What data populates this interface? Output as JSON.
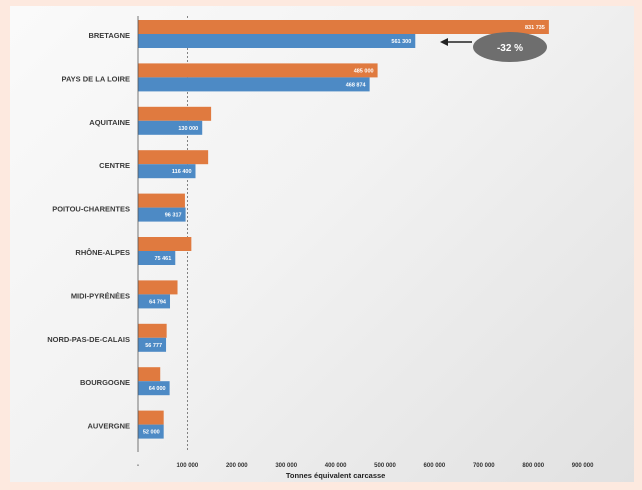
{
  "chart_data": {
    "type": "bar",
    "orientation": "horizontal",
    "title": "",
    "xlabel": "Tonnes équivalent carcasse",
    "ylabel": "",
    "xlim": [
      0,
      900000
    ],
    "x_ticks": [
      0,
      100000,
      200000,
      300000,
      400000,
      500000,
      600000,
      700000,
      800000,
      900000
    ],
    "x_tick_labels": [
      "-",
      "100 000",
      "200 000",
      "300 000",
      "400 000",
      "500 000",
      "600 000",
      "700 000",
      "800 000",
      "900 000"
    ],
    "categories": [
      "BRETAGNE",
      "PAYS DE LA LOIRE",
      "AQUITAINE",
      "CENTRE",
      "POITOU-CHARENTES",
      "RHÔNE-ALPES",
      "MIDI-PYRÉNÉES",
      "NORD-PAS-DE-CALAIS",
      "BOURGOGNE",
      "AUVERGNE"
    ],
    "series": [
      {
        "color": "#e07a3f",
        "values": [
          831735,
          485000,
          148000,
          142000,
          95000,
          108000,
          80000,
          58000,
          45000,
          52000
        ],
        "labels": [
          "831 735",
          "485 000",
          "",
          "",
          "",
          "",
          "",
          "",
          "",
          ""
        ]
      },
      {
        "color": "#4d8ac5",
        "values": [
          561300,
          468874,
          130000,
          116400,
          96317,
          75461,
          64794,
          56777,
          64000,
          52000
        ],
        "labels": [
          "561 300",
          "468 874",
          "130 000",
          "116 400",
          "96 317",
          "75 461",
          "64 794",
          "56 777",
          "64 000",
          "52 000"
        ]
      }
    ],
    "annotation": {
      "text": "-32 %"
    },
    "grid": false,
    "legend": "none"
  }
}
